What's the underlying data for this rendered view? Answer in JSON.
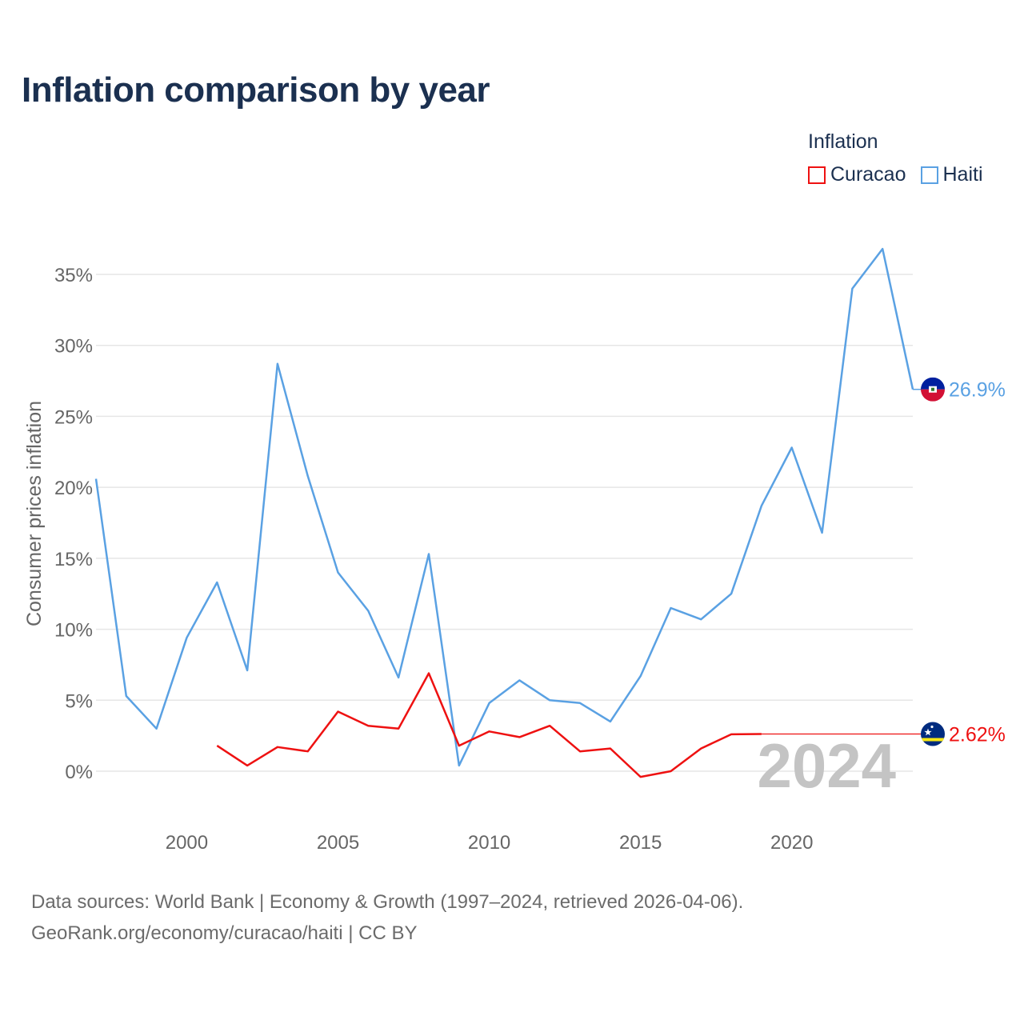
{
  "title": "Inflation comparison by year",
  "legend": {
    "title": "Inflation",
    "items": [
      {
        "label": "Curacao",
        "color": "#ee1111"
      },
      {
        "label": "Haiti",
        "color": "#5aa1e3"
      }
    ]
  },
  "source": {
    "line1": "Data sources: World Bank | Economy & Growth (1997–2024, retrieved 2026-04-06).",
    "line2": "GeoRank.org/economy/curacao/haiti | CC BY"
  },
  "chart_data": {
    "type": "line",
    "title": "Inflation comparison by year",
    "ylabel": "Consumer prices inflation",
    "xlabel": "",
    "xlim": [
      1997,
      2024
    ],
    "ylim": [
      -2.5,
      37
    ],
    "x_ticks": [
      2000,
      2005,
      2010,
      2015,
      2020
    ],
    "y_ticks": [
      0,
      5,
      10,
      15,
      20,
      25,
      30,
      35
    ],
    "y_tick_labels": [
      "0%",
      "5%",
      "10%",
      "15%",
      "20%",
      "25%",
      "30%",
      "35%"
    ],
    "year_watermark": "2024",
    "series": [
      {
        "name": "Haiti",
        "color": "#5aa1e3",
        "x": [
          1997,
          1998,
          1999,
          2000,
          2001,
          2002,
          2003,
          2004,
          2005,
          2006,
          2007,
          2008,
          2009,
          2010,
          2011,
          2012,
          2013,
          2014,
          2015,
          2016,
          2017,
          2018,
          2019,
          2020,
          2021,
          2022,
          2023,
          2024
        ],
        "values": [
          20.6,
          5.3,
          3.0,
          9.4,
          13.3,
          7.1,
          28.7,
          20.8,
          14.0,
          11.3,
          6.6,
          15.3,
          0.4,
          4.8,
          6.4,
          5.0,
          4.8,
          3.5,
          6.7,
          11.5,
          10.7,
          12.5,
          18.7,
          22.8,
          16.8,
          34.0,
          36.8,
          26.9
        ],
        "end_label": "26.9%"
      },
      {
        "name": "Curacao",
        "color": "#ee1111",
        "x": [
          2001,
          2002,
          2003,
          2004,
          2005,
          2006,
          2007,
          2008,
          2009,
          2010,
          2011,
          2012,
          2013,
          2014,
          2015,
          2016,
          2017,
          2018,
          2019
        ],
        "values": [
          1.8,
          0.4,
          1.7,
          1.4,
          4.2,
          3.2,
          3.0,
          6.9,
          1.8,
          2.8,
          2.4,
          3.2,
          1.4,
          1.6,
          -0.4,
          0.0,
          1.6,
          2.6,
          2.62
        ],
        "end_label": "2.62%",
        "carry_forward_to": 2024
      }
    ]
  }
}
